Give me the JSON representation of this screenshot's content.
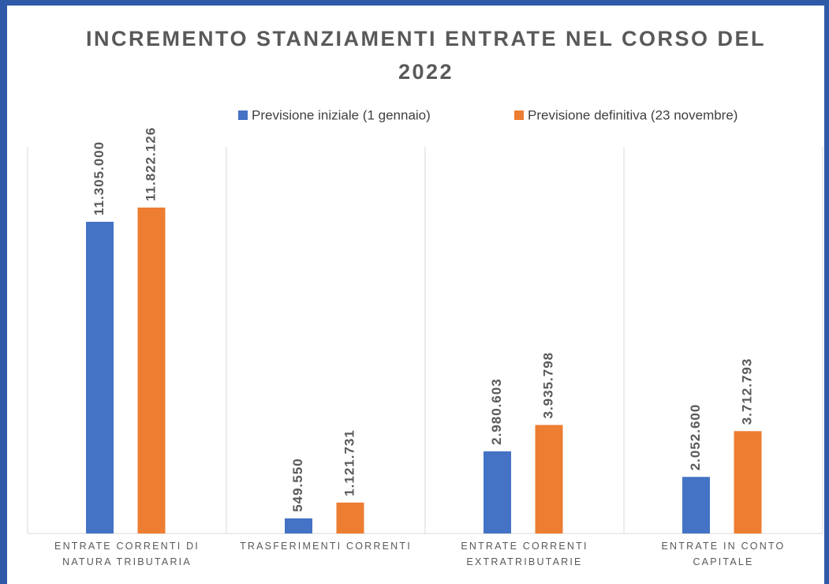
{
  "chart_data": {
    "type": "bar",
    "title": "INCREMENTO STANZIAMENTI ENTRATE NEL CORSO DEL 2022",
    "categories": [
      "ENTRATE CORRENTI DI NATURA TRIBUTARIA",
      "TRASFERIMENTI CORRENTI",
      "ENTRATE CORRENTI EXTRATRIBUTARIE",
      "ENTRATE IN CONTO CAPITALE"
    ],
    "series": [
      {
        "name": "Previsione iniziale (1 gennaio)",
        "color": "#4472c4",
        "values": [
          11305000,
          549550,
          2980603,
          2052600
        ],
        "value_labels": [
          "11.305.000",
          "549.550",
          "2.980.603",
          "2.052.600"
        ]
      },
      {
        "name": "Previsione definitiva (23 novembre)",
        "color": "#ed7d31",
        "values": [
          11822126,
          1121731,
          3935798,
          3712793
        ],
        "value_labels": [
          "11.822.126",
          "1.121.731",
          "3.935.798",
          "3.712.793"
        ]
      }
    ],
    "legend": "top"
  }
}
